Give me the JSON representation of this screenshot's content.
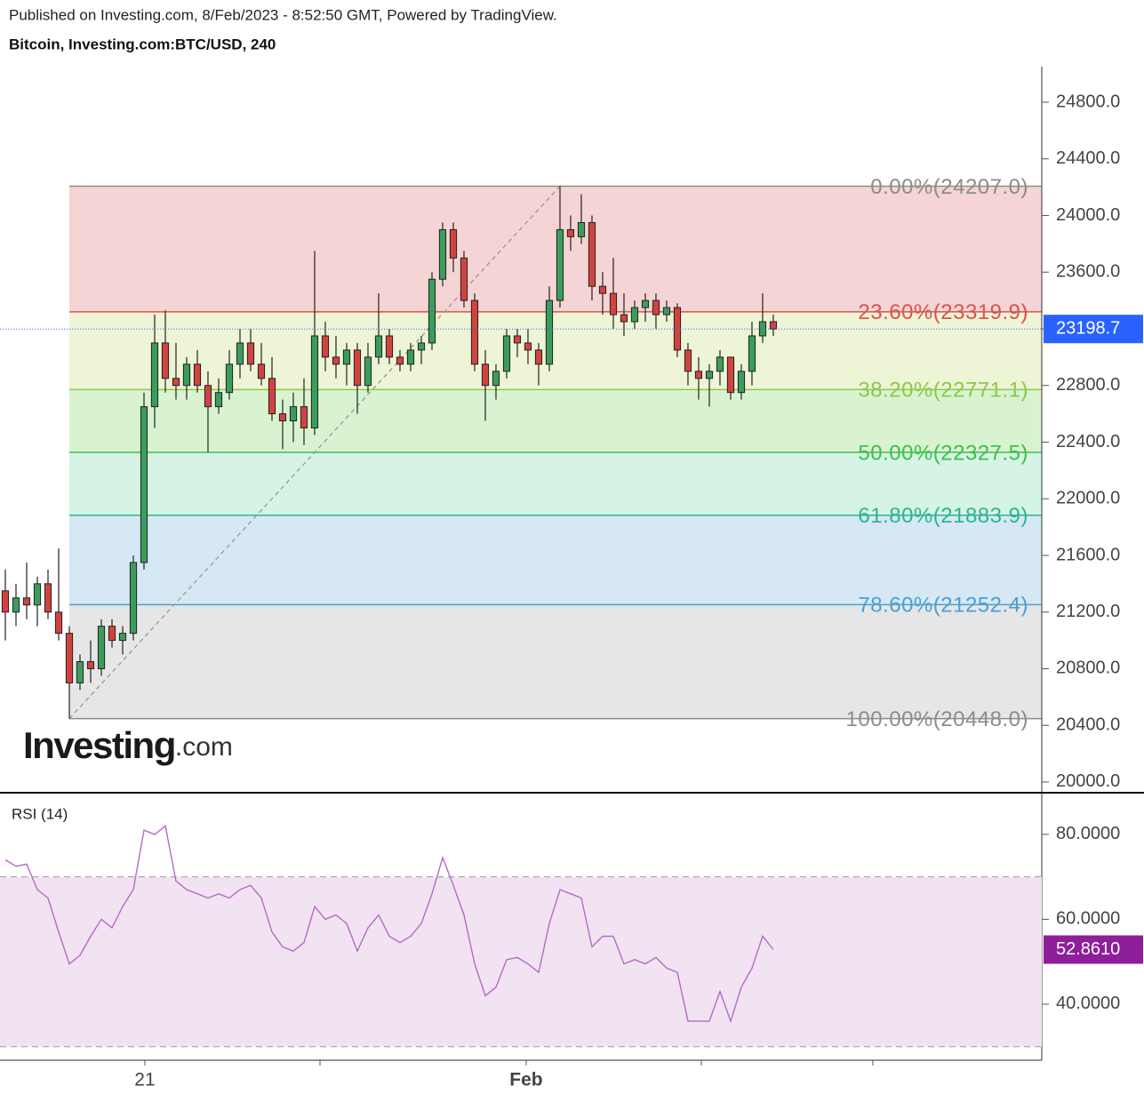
{
  "chart_data": {
    "type": "candlestick",
    "header": "Published on Investing.com, 8/Feb/2023 - 8:52:50 GMT, Powered by TradingView.",
    "title": "Bitcoin, Investing.com:BTC/USD, 240",
    "logo": {
      "main": "Investing",
      "suffix": ".com"
    },
    "xlim": [
      -0.5,
      97.17
    ],
    "xticks": [
      {
        "value": 13.08,
        "label": "21"
      },
      {
        "value": 48.83,
        "label": "Feb"
      }
    ],
    "xticks_minor": [
      29.5,
      65.25,
      81.33
    ],
    "ylim": [
      19937,
      25051
    ],
    "yticks": [
      {
        "value": 20000,
        "label": "20000.0"
      },
      {
        "value": 20400,
        "label": "20400.0"
      },
      {
        "value": 20800,
        "label": "20800.0"
      },
      {
        "value": 21200,
        "label": "21200.0"
      },
      {
        "value": 21600,
        "label": "21600.0"
      },
      {
        "value": 22000,
        "label": "22000.0"
      },
      {
        "value": 22400,
        "label": "22400.0"
      },
      {
        "value": 22800,
        "label": "22800.0"
      },
      {
        "value": 23200,
        "label": "23200.0"
      },
      {
        "value": 23600,
        "label": "23600.0"
      },
      {
        "value": 24000,
        "label": "24000.0"
      },
      {
        "value": 24400,
        "label": "24400.0"
      },
      {
        "value": 24800,
        "label": "24800.0"
      }
    ],
    "up_color": "#3a9d5d",
    "down_color": "#d2433f",
    "candles": {
      "open": [
        21350,
        21200,
        21300,
        21250,
        21400,
        21200,
        21050,
        20700,
        20850,
        20800,
        21100,
        21000,
        21050,
        21550,
        22650,
        23100,
        22850,
        22800,
        22950,
        22800,
        22650,
        22750,
        22950,
        23100,
        22950,
        22850,
        22600,
        22550,
        22650,
        22500,
        23150,
        23000,
        22950,
        23050,
        22800,
        23000,
        23150,
        23000,
        22950,
        23050,
        23100,
        23550,
        23900,
        23700,
        23400,
        22950,
        22800,
        22900,
        23150,
        23100,
        23050,
        22950,
        23400,
        23900,
        23850,
        23950,
        23500,
        23450,
        23300,
        23250,
        23350,
        23400,
        23300,
        23350,
        23050,
        22900,
        22850,
        22900,
        23000,
        22750,
        22900,
        23150,
        23250
      ],
      "high": [
        21500,
        21400,
        21550,
        21450,
        21500,
        21650,
        21100,
        20900,
        21000,
        21150,
        21150,
        21100,
        21600,
        22750,
        23300,
        23330,
        23100,
        23000,
        23050,
        22900,
        22850,
        23050,
        23200,
        23200,
        23100,
        23000,
        22700,
        22750,
        22850,
        23750,
        23250,
        23150,
        23100,
        23100,
        23100,
        23450,
        23200,
        23050,
        23100,
        23150,
        23600,
        23950,
        23950,
        23750,
        23450,
        23050,
        22950,
        23200,
        23200,
        23200,
        23100,
        23500,
        24207,
        24000,
        24150,
        24000,
        23600,
        23700,
        23450,
        23400,
        23450,
        23450,
        23400,
        23380,
        23100,
        23000,
        22950,
        23050,
        23000,
        22950,
        23250,
        23450,
        23300
      ],
      "low": [
        21000,
        21100,
        21150,
        21100,
        21150,
        21000,
        20448,
        20650,
        20700,
        20750,
        20950,
        20900,
        21000,
        21500,
        22500,
        22750,
        22700,
        22700,
        22750,
        22330,
        22600,
        22700,
        22850,
        22900,
        22800,
        22550,
        22350,
        22400,
        22380,
        22450,
        22900,
        22850,
        22800,
        22600,
        22750,
        22950,
        22950,
        22900,
        22900,
        22950,
        23050,
        23500,
        23600,
        23350,
        22900,
        22550,
        22700,
        22850,
        23000,
        22950,
        22800,
        22900,
        23350,
        23750,
        23800,
        23400,
        23300,
        23200,
        23150,
        23200,
        23250,
        23200,
        23250,
        23000,
        22800,
        22700,
        22650,
        22800,
        22700,
        22700,
        22800,
        23100,
        23150
      ],
      "close": [
        21200,
        21300,
        21250,
        21400,
        21200,
        21050,
        20700,
        20850,
        20800,
        21100,
        21000,
        21050,
        21550,
        22650,
        23100,
        22850,
        22800,
        22950,
        22800,
        22650,
        22750,
        22950,
        23100,
        22950,
        22850,
        22600,
        22550,
        22650,
        22500,
        23150,
        23000,
        22950,
        23050,
        22800,
        23000,
        23150,
        23000,
        22950,
        23050,
        23100,
        23550,
        23900,
        23700,
        23400,
        22950,
        22800,
        22900,
        23150,
        23100,
        23050,
        22950,
        23400,
        23900,
        23850,
        23950,
        23500,
        23450,
        23300,
        23250,
        23350,
        23400,
        23300,
        23350,
        23050,
        22900,
        22850,
        22900,
        23000,
        22750,
        22900,
        23150,
        23250,
        23198.7
      ]
    },
    "current_price": 23198.7,
    "fib": {
      "anchor_x": [
        6,
        52
      ],
      "anchor_prices": [
        20448.0,
        24207.0
      ],
      "levels": [
        {
          "label": "0.00%(24207.0)",
          "price": 24207.0,
          "color": "#8c8c8c",
          "fill": "#f4d4d4"
        },
        {
          "label": "23.60%(23319.9)",
          "price": 23319.9,
          "color": "#d9534f",
          "fill": "#eef4d6"
        },
        {
          "label": "38.20%(22771.1)",
          "price": 22771.1,
          "color": "#8cc84b",
          "fill": "#d9f3d1"
        },
        {
          "label": "50.00%(22327.5)",
          "price": 22327.5,
          "color": "#3fbf4a",
          "fill": "#d5f4e6"
        },
        {
          "label": "61.80%(21883.9)",
          "price": 21883.9,
          "color": "#2bb58f",
          "fill": "#d5e8f4"
        },
        {
          "label": "78.60%(21252.4)",
          "price": 21252.4,
          "color": "#4aa0d5",
          "fill": "#e6e6e6"
        },
        {
          "label": "100.00%(20448.0)",
          "price": 20448.0,
          "color": "#8c8c8c"
        }
      ]
    },
    "rsi": {
      "label": "RSI (14)",
      "color": "#b36bc6",
      "values": [
        74,
        72.5,
        73,
        67,
        65,
        57,
        49.5,
        51.5,
        56,
        60,
        58,
        63,
        67,
        81,
        80,
        82,
        69,
        67,
        66,
        65,
        66,
        65,
        67,
        68,
        65,
        57,
        53.5,
        52.5,
        54.5,
        63,
        60,
        61,
        59,
        52.5,
        58,
        61,
        56,
        54.5,
        56,
        59,
        66,
        74.5,
        68,
        61,
        49.5,
        42,
        44,
        50.5,
        51,
        49.5,
        47.5,
        59,
        67,
        66,
        65,
        53.5,
        56,
        56,
        49.5,
        50.5,
        49.5,
        51,
        48.5,
        47.5,
        36,
        36,
        36,
        43,
        36,
        44,
        48.5,
        56,
        52.861
      ],
      "current_label": "52.8610",
      "ylim": [
        26.8,
        89.6
      ],
      "yticks": [
        {
          "value": 40,
          "label": "40.0000"
        },
        {
          "value": 60,
          "label": "60.0000"
        },
        {
          "value": 80,
          "label": "80.0000"
        }
      ],
      "bands": [
        30,
        70
      ]
    }
  }
}
